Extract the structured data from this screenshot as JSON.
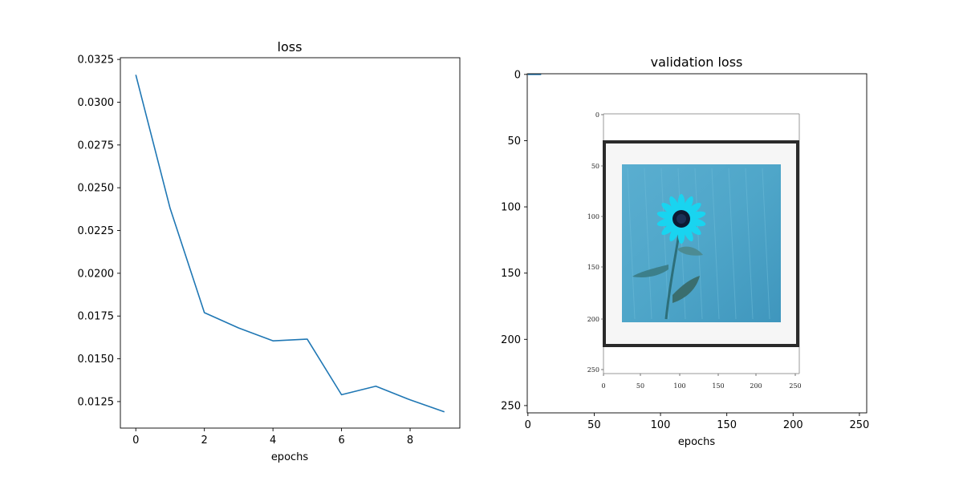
{
  "chart_data": [
    {
      "type": "line",
      "title": "loss",
      "xlabel": "epochs",
      "ylabel": "",
      "xlim": [
        -0.45,
        9.45
      ],
      "ylim": [
        0.01095,
        0.0326
      ],
      "xticks": [
        0,
        2,
        4,
        6,
        8
      ],
      "xtick_labels": [
        "0",
        "2",
        "4",
        "6",
        "8"
      ],
      "yticks": [
        0.0125,
        0.015,
        0.0175,
        0.02,
        0.0225,
        0.025,
        0.0275,
        0.03,
        0.0325
      ],
      "ytick_labels": [
        "0.0125",
        "0.0150",
        "0.0175",
        "0.0200",
        "0.0225",
        "0.0250",
        "0.0275",
        "0.0300",
        "0.0325"
      ],
      "grid": false,
      "series": [
        {
          "color": "#1f77b4",
          "x": [
            0,
            1,
            2,
            3,
            4,
            5,
            6,
            7,
            8,
            9
          ],
          "y": [
            0.0316,
            0.0238,
            0.0177,
            0.0168,
            0.01605,
            0.01615,
            0.0129,
            0.0134,
            0.0126,
            0.0119
          ]
        }
      ]
    },
    {
      "type": "image",
      "title": "validation loss",
      "xlabel": "epochs",
      "ylabel": "",
      "xlim": [
        -0.5,
        255.5
      ],
      "ylim": [
        255.5,
        -0.5
      ],
      "xticks": [
        0,
        50,
        100,
        150,
        200,
        250
      ],
      "xtick_labels": [
        "0",
        "50",
        "100",
        "150",
        "200",
        "250"
      ],
      "yticks": [
        0,
        50,
        100,
        150,
        200,
        250
      ],
      "ytick_labels": [
        "0",
        "50",
        "100",
        "150",
        "200",
        "250"
      ],
      "series": [
        {
          "color": "#1f77b4",
          "x": [
            0,
            10
          ],
          "y": [
            0,
            0
          ]
        }
      ],
      "embedded_image": {
        "description": "screenshot of an earlier image plot: flower photo in cyan tones inside a thick dark frame",
        "xticks": [
          "0",
          "50",
          "100",
          "150",
          "200",
          "250"
        ],
        "yticks": [
          "0",
          "50",
          "100",
          "150",
          "200",
          "250"
        ],
        "colors": {
          "background": "#4fa6c9",
          "flower": "#19d4f0",
          "center": "#0c1a33",
          "frame": "#2a2a2a"
        }
      }
    }
  ]
}
